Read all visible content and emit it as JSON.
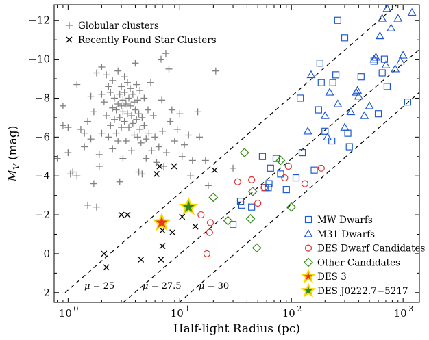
{
  "chart_data": {
    "type": "scatter",
    "xlabel": "Half-light Radius (pc)",
    "ylabel": "M_V (mag)",
    "ylabel_main": "M",
    "ylabel_sub": "V",
    "ylabel_rest": " (mag)",
    "xscale": "log",
    "xlim": [
      0.75,
      1400
    ],
    "ylim": [
      2.5,
      -12.8
    ],
    "y_inverted": true,
    "grid": false,
    "x_ticks": [
      {
        "value": 1,
        "label": "10"
      },
      {
        "value": 10,
        "label": "10"
      },
      {
        "value": 100,
        "label": "10"
      },
      {
        "value": 1000,
        "label": "10"
      }
    ],
    "x_tick_exponents": [
      "0",
      "1",
      "2",
      "3"
    ],
    "y_ticks": [
      {
        "value": -12,
        "label": "−12"
      },
      {
        "value": -10,
        "label": "−10"
      },
      {
        "value": -8,
        "label": "−8"
      },
      {
        "value": -6,
        "label": "−6"
      },
      {
        "value": -4,
        "label": "−4"
      },
      {
        "value": -2,
        "label": "−2"
      },
      {
        "value": 0,
        "label": "0"
      },
      {
        "value": 2,
        "label": "2"
      }
    ],
    "surface_brightness_lines": [
      {
        "mu": 25,
        "label": "μ = 25",
        "points": [
          [
            0.94,
            2.0
          ],
          [
            1400,
            -13.8
          ]
        ]
      },
      {
        "mu": 27.5,
        "label": "μ = 27.5",
        "points": [
          [
            3.12,
            2.5
          ],
          [
            1400,
            -10.5
          ]
        ]
      },
      {
        "mu": 30,
        "label": "μ = 30",
        "points": [
          [
            9.9,
            2.5
          ],
          [
            1400,
            -8.3
          ]
        ]
      }
    ],
    "legend_upper": {
      "position": "top-left",
      "entries": [
        "Globular clusters",
        "Recently Found Star Clusters"
      ]
    },
    "legend_lower": {
      "position": "bottom-right",
      "entries": [
        "MW Dwarfs",
        "M31 Dwarfs",
        "DES Dwarf Candidates",
        "Other Candidates",
        "DES 3",
        "DES J0222.7−5217"
      ]
    },
    "series": [
      {
        "name": "Globular clusters",
        "marker": "plus",
        "color": "#808080",
        "points": [
          [
            0.8,
            -4.9
          ],
          [
            0.9,
            -7.6
          ],
          [
            0.9,
            -6.6
          ],
          [
            1.0,
            -6.5
          ],
          [
            1.0,
            -5.2
          ],
          [
            1.05,
            -4.1
          ],
          [
            1.1,
            -4.2
          ],
          [
            1.2,
            -8.7
          ],
          [
            1.2,
            -4.0
          ],
          [
            1.3,
            -6.4
          ],
          [
            1.4,
            -6.2
          ],
          [
            1.4,
            -5.5
          ],
          [
            1.5,
            -6.8
          ],
          [
            1.5,
            -2.5
          ],
          [
            1.6,
            -8.1
          ],
          [
            1.6,
            -5.9
          ],
          [
            1.7,
            -7.3
          ],
          [
            1.7,
            -3.6
          ],
          [
            1.8,
            -9.3
          ],
          [
            1.8,
            -2.4
          ],
          [
            1.9,
            -5.1
          ],
          [
            1.9,
            -4.5
          ],
          [
            2.0,
            -9.6
          ],
          [
            2.0,
            -8.2
          ],
          [
            2.0,
            -6.2
          ],
          [
            2.1,
            -7.8
          ],
          [
            2.2,
            -9.2
          ],
          [
            2.2,
            -7.1
          ],
          [
            2.3,
            -8.6
          ],
          [
            2.3,
            -6.0
          ],
          [
            2.4,
            -8.3
          ],
          [
            2.4,
            -6.6
          ],
          [
            2.5,
            -8.9
          ],
          [
            2.5,
            -7.5
          ],
          [
            2.5,
            -5.4
          ],
          [
            2.6,
            -8.0
          ],
          [
            2.6,
            -6.9
          ],
          [
            2.7,
            -7.4
          ],
          [
            2.7,
            -6.2
          ],
          [
            2.8,
            -9.4
          ],
          [
            2.8,
            -7.7
          ],
          [
            2.8,
            -5.8
          ],
          [
            2.9,
            -8.2
          ],
          [
            2.9,
            -7.0
          ],
          [
            2.9,
            -3.7
          ],
          [
            3.0,
            -8.6
          ],
          [
            3.0,
            -7.6
          ],
          [
            3.0,
            -6.5
          ],
          [
            3.1,
            -7.9
          ],
          [
            3.1,
            -7.3
          ],
          [
            3.1,
            -4.9
          ],
          [
            3.2,
            -9.1
          ],
          [
            3.2,
            -8.3
          ],
          [
            3.2,
            -6.8
          ],
          [
            3.3,
            -7.7
          ],
          [
            3.3,
            -5.8
          ],
          [
            3.4,
            -8.8
          ],
          [
            3.4,
            -7.2
          ],
          [
            3.5,
            -8.0
          ],
          [
            3.5,
            -6.5
          ],
          [
            3.6,
            -8.5
          ],
          [
            3.6,
            -7.6
          ],
          [
            3.7,
            -7.1
          ],
          [
            3.7,
            -5.3
          ],
          [
            3.8,
            -8.2
          ],
          [
            3.8,
            -6.7
          ],
          [
            3.9,
            -7.8
          ],
          [
            3.9,
            -6.1
          ],
          [
            4.0,
            -9.8
          ],
          [
            4.0,
            -7.4
          ],
          [
            4.1,
            -8.7
          ],
          [
            4.1,
            -6.9
          ],
          [
            4.2,
            -7.9
          ],
          [
            4.2,
            -6.0
          ],
          [
            4.3,
            -7.2
          ],
          [
            4.3,
            -4.2
          ],
          [
            4.4,
            -8.4
          ],
          [
            4.4,
            -6.4
          ],
          [
            4.5,
            -5.7
          ],
          [
            4.6,
            -7.0
          ],
          [
            4.6,
            -4.1
          ],
          [
            4.8,
            -8.0
          ],
          [
            4.8,
            -6.6
          ],
          [
            5.0,
            -5.9
          ],
          [
            5.0,
            -4.9
          ],
          [
            5.2,
            -7.4
          ],
          [
            5.3,
            -6.2
          ],
          [
            5.5,
            -8.8
          ],
          [
            5.6,
            -5.3
          ],
          [
            5.8,
            -7.1
          ],
          [
            6.0,
            -6.0
          ],
          [
            6.2,
            -4.7
          ],
          [
            6.5,
            -5.5
          ],
          [
            6.8,
            -10.0
          ],
          [
            6.9,
            -7.9
          ],
          [
            7.0,
            -6.3
          ],
          [
            7.2,
            -4.5
          ],
          [
            7.5,
            -10.3
          ],
          [
            7.6,
            -5.2
          ],
          [
            8.0,
            -9.5
          ],
          [
            8.2,
            -6.8
          ],
          [
            8.5,
            -7.4
          ],
          [
            9.0,
            -5.8
          ],
          [
            9.5,
            -6.4
          ],
          [
            10.0,
            -7.2
          ],
          [
            10.5,
            -5.0
          ],
          [
            11.0,
            -5.6
          ],
          [
            12.0,
            -6.1
          ],
          [
            12.5,
            -4.0
          ],
          [
            13.0,
            -4.8
          ],
          [
            14.5,
            -7.3
          ],
          [
            15.0,
            -6.0
          ],
          [
            17.0,
            -4.8
          ],
          [
            18.0,
            -3.5
          ],
          [
            21.0,
            -9.4
          ],
          [
            30.0,
            -4.4
          ]
        ]
      },
      {
        "name": "Recently Found Star Clusters",
        "marker": "x",
        "color": "#000000",
        "points": [
          [
            2.1,
            0.0
          ],
          [
            2.2,
            0.7
          ],
          [
            3.0,
            -2.0
          ],
          [
            3.4,
            -2.0
          ],
          [
            4.5,
            0.3
          ],
          [
            6.2,
            -4.1
          ],
          [
            6.6,
            -4.5
          ],
          [
            6.8,
            0.3
          ],
          [
            7.0,
            -1.2
          ],
          [
            7.0,
            -0.4
          ],
          [
            8.6,
            -1.1
          ],
          [
            8.9,
            -4.5
          ],
          [
            10.5,
            -1.9
          ],
          [
            13.8,
            -1.4
          ],
          [
            20.5,
            -4.3
          ]
        ]
      },
      {
        "name": "MW Dwarfs",
        "marker": "square",
        "color": "#1f5bd0",
        "points": [
          [
            30,
            -1.5
          ],
          [
            35,
            -2.7
          ],
          [
            36,
            -2.5
          ],
          [
            44,
            -2.4
          ],
          [
            55,
            -5.0
          ],
          [
            58,
            -3.4
          ],
          [
            62,
            -3.4
          ],
          [
            63,
            -3.6
          ],
          [
            65,
            -4.4
          ],
          [
            73,
            -4.9
          ],
          [
            80,
            -4.1
          ],
          [
            90,
            -3.3
          ],
          [
            110,
            -3.9
          ],
          [
            120,
            -8.0
          ],
          [
            125,
            -5.2
          ],
          [
            160,
            -4.3
          ],
          [
            175,
            -7.4
          ],
          [
            180,
            -9.8
          ],
          [
            185,
            -8.8
          ],
          [
            200,
            -6.3
          ],
          [
            230,
            -5.8
          ],
          [
            235,
            -8.8
          ],
          [
            250,
            -9.2
          ],
          [
            260,
            -12.0
          ],
          [
            300,
            -11.1
          ],
          [
            320,
            -6.2
          ],
          [
            330,
            -5.5
          ],
          [
            420,
            -9.1
          ],
          [
            550,
            -9.9
          ],
          [
            600,
            -7.2
          ],
          [
            650,
            -9.3
          ],
          [
            680,
            -10.0
          ],
          [
            720,
            -8.6
          ],
          [
            1100,
            -7.8
          ]
        ]
      },
      {
        "name": "M31 Dwarfs",
        "marker": "triangle",
        "color": "#1f5bd0",
        "points": [
          [
            140,
            -6.3
          ],
          [
            150,
            -9.2
          ],
          [
            200,
            -7.1
          ],
          [
            210,
            -6.0
          ],
          [
            220,
            -8.3
          ],
          [
            260,
            -7.7
          ],
          [
            300,
            -6.5
          ],
          [
            340,
            -7.3
          ],
          [
            380,
            -8.3
          ],
          [
            390,
            -8.4
          ],
          [
            400,
            -8.1
          ],
          [
            450,
            -7.1
          ],
          [
            500,
            -7.6
          ],
          [
            550,
            -10.0
          ],
          [
            570,
            -10.1
          ],
          [
            620,
            -11.2
          ],
          [
            650,
            -12.1
          ],
          [
            700,
            -9.7
          ],
          [
            720,
            -12.6
          ],
          [
            780,
            -11.6
          ],
          [
            850,
            -9.5
          ],
          [
            900,
            -12.1
          ],
          [
            950,
            -9.9
          ],
          [
            1000,
            -10.2
          ],
          [
            1200,
            -12.4
          ]
        ]
      },
      {
        "name": "DES Dwarf Candidates",
        "marker": "circle",
        "color": "#e03030",
        "points": [
          [
            15.5,
            -2.0
          ],
          [
            17.5,
            0.0
          ],
          [
            18.5,
            -1.1
          ],
          [
            18.8,
            -1.6
          ],
          [
            33,
            -3.7
          ],
          [
            44,
            -3.8
          ],
          [
            50,
            -2.6
          ],
          [
            57,
            -3.4
          ],
          [
            87,
            -3.9
          ],
          [
            94,
            -4.5
          ],
          [
            132,
            -3.6
          ],
          [
            185,
            -4.4
          ]
        ]
      },
      {
        "name": "Other Candidates",
        "marker": "diamond",
        "color": "#3a8c1e",
        "points": [
          [
            20,
            -2.9
          ],
          [
            27,
            -1.7
          ],
          [
            38,
            -5.2
          ],
          [
            43,
            -1.8
          ],
          [
            45,
            -3.2
          ],
          [
            49,
            -0.3
          ],
          [
            80,
            -4.8
          ],
          [
            100,
            -2.4
          ]
        ]
      },
      {
        "name": "DES 3",
        "marker": "star",
        "color": "#e83a22",
        "edge": "#f5d800",
        "points": [
          [
            6.9,
            -1.6
          ]
        ]
      },
      {
        "name": "DES J0222.7−5217",
        "marker": "star",
        "color": "#2e8b1c",
        "edge": "#f5d800",
        "points": [
          [
            12.0,
            -2.4
          ]
        ]
      }
    ]
  }
}
